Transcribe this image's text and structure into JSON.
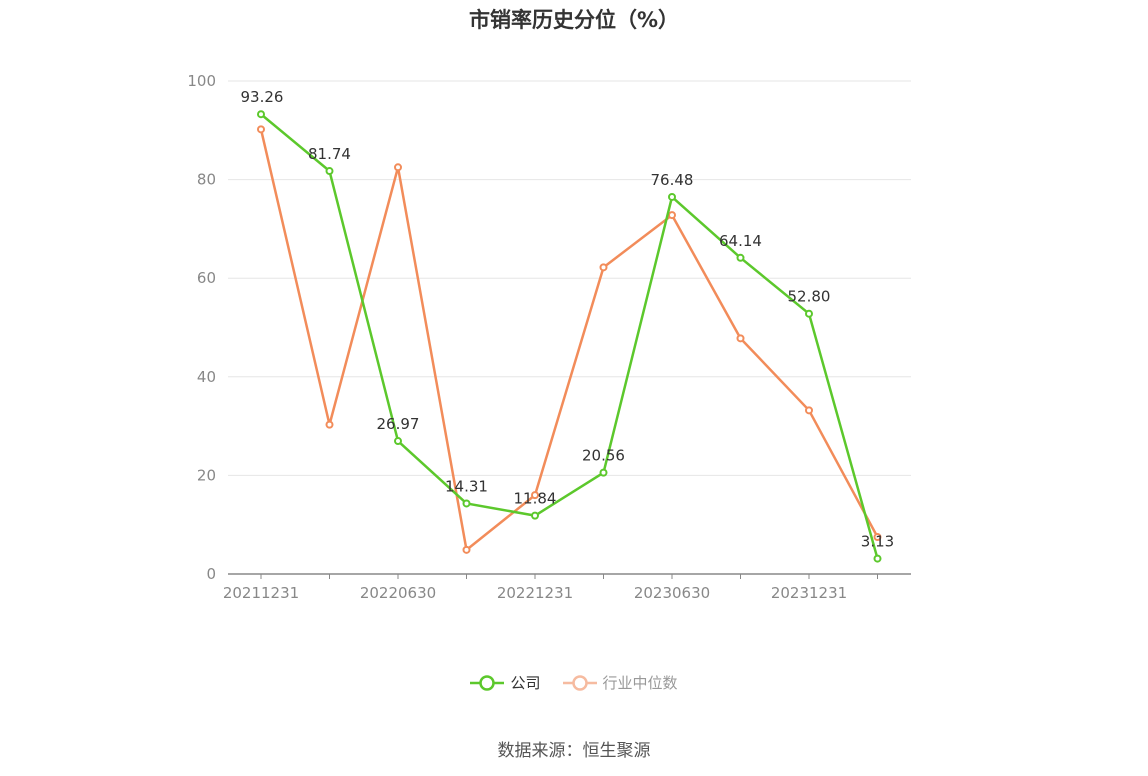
{
  "chart_data": {
    "type": "line",
    "title": "市销率历史分位（%）",
    "x": [
      "20211231",
      "20220331",
      "20220630",
      "20220930",
      "20221231",
      "20230331",
      "20230630",
      "20230930",
      "20231231",
      "20240331"
    ],
    "x_tick_labels": [
      "20211231",
      "20220630",
      "20221231",
      "20230630",
      "20231231"
    ],
    "ylim": [
      0,
      100
    ],
    "y_ticks": [
      0,
      20,
      40,
      60,
      80,
      100
    ],
    "grid": true,
    "legend_position": "bottom",
    "series": [
      {
        "name": "公司",
        "color": "#5cc82c",
        "values": [
          93.26,
          81.74,
          26.97,
          14.31,
          11.84,
          20.56,
          76.48,
          64.14,
          52.8,
          3.13
        ],
        "data_labels": [
          "93.26",
          "81.74",
          "26.97",
          "14.31",
          "11.84",
          "20.56",
          "76.48",
          "64.14",
          "52.80",
          "3.13"
        ]
      },
      {
        "name": "行业中位数",
        "color": "#f28c5a",
        "values": [
          90.2,
          30.3,
          82.5,
          4.9,
          16.0,
          62.2,
          72.8,
          47.8,
          33.2,
          7.5
        ]
      }
    ]
  },
  "legend": {
    "company": "公司",
    "industry": "行业中位数"
  },
  "source": "数据来源：恒生聚源"
}
